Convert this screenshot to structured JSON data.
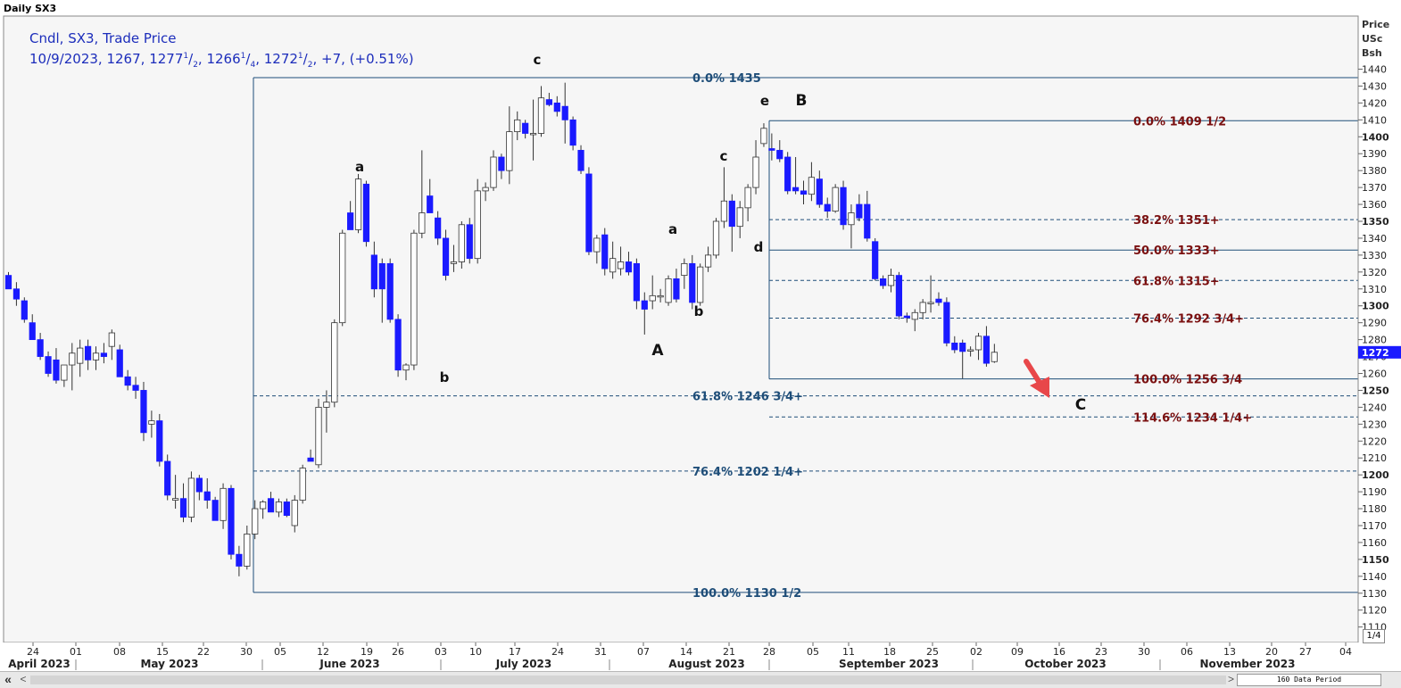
{
  "window": {
    "title": "Daily SX3"
  },
  "legend": {
    "line1": "Cndl, SX3, Trade Price",
    "date": "10/9/2023",
    "open": "1267",
    "high_int": "1277",
    "high_num": "1",
    "high_den": "2",
    "low_int": "1266",
    "low_num": "1",
    "low_den": "4",
    "close_int": "1272",
    "close_num": "1",
    "close_den": "2",
    "change": "+7, (+0.51%)"
  },
  "axis": {
    "unit_lines": [
      "Price",
      "USc",
      "Bsh"
    ],
    "current_price": "1272"
  },
  "bottom": {
    "scroll_left": "«",
    "scroll_left2": "<",
    "scroll_right": ">",
    "data_period": "160 Data Period",
    "page_indicator": "1/4"
  },
  "colors": {
    "down_candle": "#1a1aff",
    "up_candle": "#ffffff",
    "fib_blue": "#1f4e79",
    "fib_red": "#7a0f0f",
    "arrow": "#e8474a"
  },
  "chart_data": {
    "type": "candlestick",
    "title": "Daily SX3",
    "ylabel": "Price USc Bsh",
    "ylim": [
      1110,
      1450
    ],
    "y_ticks": [
      1110,
      1120,
      1130,
      1140,
      1150,
      1160,
      1170,
      1180,
      1190,
      1200,
      1210,
      1220,
      1230,
      1240,
      1250,
      1260,
      1270,
      1280,
      1290,
      1300,
      1310,
      1320,
      1330,
      1340,
      1350,
      1360,
      1370,
      1380,
      1390,
      1400,
      1410,
      1420,
      1430,
      1440
    ],
    "x_tick_labels": [
      "24",
      "01",
      "08",
      "15",
      "22",
      "30",
      "05",
      "12",
      "19",
      "26",
      "03",
      "10",
      "17",
      "24",
      "31",
      "07",
      "14",
      "21",
      "28",
      "05",
      "11",
      "18",
      "25",
      "02",
      "09",
      "16",
      "23",
      "30",
      "06",
      "13",
      "20",
      "27",
      "04"
    ],
    "month_labels": [
      "April 2023",
      "May 2023",
      "June 2023",
      "July 2023",
      "August 2023",
      "September 2023",
      "October 2023",
      "November 2023"
    ],
    "candles": [
      {
        "o": 1318,
        "h": 1320,
        "l": 1310,
        "c": 1310
      },
      {
        "o": 1310,
        "h": 1314,
        "l": 1300,
        "c": 1304
      },
      {
        "o": 1303,
        "h": 1305,
        "l": 1290,
        "c": 1292
      },
      {
        "o": 1290,
        "h": 1295,
        "l": 1280,
        "c": 1280
      },
      {
        "o": 1280,
        "h": 1284,
        "l": 1268,
        "c": 1270
      },
      {
        "o": 1270,
        "h": 1273,
        "l": 1258,
        "c": 1260
      },
      {
        "o": 1268,
        "h": 1275,
        "l": 1254,
        "c": 1256
      },
      {
        "o": 1256,
        "h": 1262,
        "l": 1252,
        "c": 1265
      },
      {
        "o": 1265,
        "h": 1278,
        "l": 1250,
        "c": 1272
      },
      {
        "o": 1266,
        "h": 1280,
        "l": 1258,
        "c": 1275
      },
      {
        "o": 1276,
        "h": 1280,
        "l": 1262,
        "c": 1268
      },
      {
        "o": 1268,
        "h": 1276,
        "l": 1262,
        "c": 1272
      },
      {
        "o": 1272,
        "h": 1278,
        "l": 1266,
        "c": 1270
      },
      {
        "o": 1276,
        "h": 1286,
        "l": 1268,
        "c": 1284
      },
      {
        "o": 1274,
        "h": 1277,
        "l": 1258,
        "c": 1258
      },
      {
        "o": 1258,
        "h": 1262,
        "l": 1250,
        "c": 1253
      },
      {
        "o": 1253,
        "h": 1258,
        "l": 1245,
        "c": 1250
      },
      {
        "o": 1250,
        "h": 1255,
        "l": 1220,
        "c": 1225
      },
      {
        "o": 1230,
        "h": 1238,
        "l": 1222,
        "c": 1232
      },
      {
        "o": 1232,
        "h": 1236,
        "l": 1205,
        "c": 1208
      },
      {
        "o": 1208,
        "h": 1212,
        "l": 1185,
        "c": 1188
      },
      {
        "o": 1185,
        "h": 1200,
        "l": 1180,
        "c": 1186
      },
      {
        "o": 1186,
        "h": 1195,
        "l": 1172,
        "c": 1175
      },
      {
        "o": 1175,
        "h": 1202,
        "l": 1172,
        "c": 1198
      },
      {
        "o": 1198,
        "h": 1200,
        "l": 1185,
        "c": 1190
      },
      {
        "o": 1190,
        "h": 1198,
        "l": 1180,
        "c": 1185
      },
      {
        "o": 1185,
        "h": 1187,
        "l": 1173,
        "c": 1173
      },
      {
        "o": 1173,
        "h": 1195,
        "l": 1168,
        "c": 1192
      },
      {
        "o": 1192,
        "h": 1194,
        "l": 1150,
        "c": 1153
      },
      {
        "o": 1153,
        "h": 1158,
        "l": 1140,
        "c": 1146
      },
      {
        "o": 1146,
        "h": 1170,
        "l": 1144,
        "c": 1165
      },
      {
        "o": 1165,
        "h": 1185,
        "l": 1162,
        "c": 1180
      },
      {
        "o": 1180,
        "h": 1185,
        "l": 1174,
        "c": 1184
      },
      {
        "o": 1186,
        "h": 1190,
        "l": 1178,
        "c": 1178
      },
      {
        "o": 1178,
        "h": 1186,
        "l": 1175,
        "c": 1184
      },
      {
        "o": 1184,
        "h": 1186,
        "l": 1175,
        "c": 1176
      },
      {
        "o": 1170,
        "h": 1188,
        "l": 1166,
        "c": 1185
      },
      {
        "o": 1185,
        "h": 1206,
        "l": 1183,
        "c": 1204
      },
      {
        "o": 1210,
        "h": 1215,
        "l": 1208,
        "c": 1208
      },
      {
        "o": 1206,
        "h": 1245,
        "l": 1204,
        "c": 1240
      },
      {
        "o": 1240,
        "h": 1250,
        "l": 1225,
        "c": 1243
      },
      {
        "o": 1243,
        "h": 1292,
        "l": 1240,
        "c": 1290
      },
      {
        "o": 1290,
        "h": 1345,
        "l": 1288,
        "c": 1343
      },
      {
        "o": 1355,
        "h": 1362,
        "l": 1345,
        "c": 1345
      },
      {
        "o": 1345,
        "h": 1378,
        "l": 1343,
        "c": 1375
      },
      {
        "o": 1372,
        "h": 1374,
        "l": 1335,
        "c": 1338
      },
      {
        "o": 1330,
        "h": 1338,
        "l": 1305,
        "c": 1310
      },
      {
        "o": 1325,
        "h": 1328,
        "l": 1290,
        "c": 1310
      },
      {
        "o": 1325,
        "h": 1328,
        "l": 1290,
        "c": 1292
      },
      {
        "o": 1292,
        "h": 1295,
        "l": 1258,
        "c": 1262
      },
      {
        "o": 1262,
        "h": 1266,
        "l": 1256,
        "c": 1265
      },
      {
        "o": 1265,
        "h": 1345,
        "l": 1262,
        "c": 1343
      },
      {
        "o": 1343,
        "h": 1392,
        "l": 1340,
        "c": 1355
      },
      {
        "o": 1365,
        "h": 1375,
        "l": 1355,
        "c": 1355
      },
      {
        "o": 1352,
        "h": 1356,
        "l": 1336,
        "c": 1340
      },
      {
        "o": 1340,
        "h": 1345,
        "l": 1315,
        "c": 1318
      },
      {
        "o": 1325,
        "h": 1336,
        "l": 1320,
        "c": 1326
      },
      {
        "o": 1326,
        "h": 1350,
        "l": 1322,
        "c": 1348
      },
      {
        "o": 1348,
        "h": 1352,
        "l": 1325,
        "c": 1328
      },
      {
        "o": 1328,
        "h": 1375,
        "l": 1325,
        "c": 1368
      },
      {
        "o": 1368,
        "h": 1373,
        "l": 1362,
        "c": 1370
      },
      {
        "o": 1370,
        "h": 1392,
        "l": 1368,
        "c": 1388
      },
      {
        "o": 1388,
        "h": 1390,
        "l": 1375,
        "c": 1380
      },
      {
        "o": 1380,
        "h": 1418,
        "l": 1372,
        "c": 1403
      },
      {
        "o": 1403,
        "h": 1415,
        "l": 1398,
        "c": 1410
      },
      {
        "o": 1408,
        "h": 1410,
        "l": 1399,
        "c": 1402
      },
      {
        "o": 1402,
        "h": 1422,
        "l": 1386,
        "c": 1402
      },
      {
        "o": 1402,
        "h": 1430,
        "l": 1400,
        "c": 1423
      },
      {
        "o": 1422,
        "h": 1426,
        "l": 1418,
        "c": 1419
      },
      {
        "o": 1420,
        "h": 1424,
        "l": 1412,
        "c": 1415
      },
      {
        "o": 1418,
        "h": 1432,
        "l": 1396,
        "c": 1410
      },
      {
        "o": 1410,
        "h": 1412,
        "l": 1392,
        "c": 1395
      },
      {
        "o": 1392,
        "h": 1395,
        "l": 1378,
        "c": 1380
      },
      {
        "o": 1378,
        "h": 1382,
        "l": 1330,
        "c": 1332
      },
      {
        "o": 1332,
        "h": 1342,
        "l": 1325,
        "c": 1340
      },
      {
        "o": 1342,
        "h": 1346,
        "l": 1318,
        "c": 1322
      },
      {
        "o": 1320,
        "h": 1338,
        "l": 1316,
        "c": 1328
      },
      {
        "o": 1322,
        "h": 1335,
        "l": 1318,
        "c": 1326
      },
      {
        "o": 1326,
        "h": 1332,
        "l": 1318,
        "c": 1320
      },
      {
        "o": 1325,
        "h": 1328,
        "l": 1298,
        "c": 1303
      },
      {
        "o": 1303,
        "h": 1308,
        "l": 1283,
        "c": 1298
      },
      {
        "o": 1303,
        "h": 1318,
        "l": 1298,
        "c": 1306
      },
      {
        "o": 1306,
        "h": 1310,
        "l": 1302,
        "c": 1306
      },
      {
        "o": 1302,
        "h": 1318,
        "l": 1300,
        "c": 1316
      },
      {
        "o": 1316,
        "h": 1322,
        "l": 1302,
        "c": 1304
      },
      {
        "o": 1318,
        "h": 1328,
        "l": 1310,
        "c": 1325
      },
      {
        "o": 1325,
        "h": 1330,
        "l": 1298,
        "c": 1302
      },
      {
        "o": 1302,
        "h": 1325,
        "l": 1300,
        "c": 1323
      },
      {
        "o": 1323,
        "h": 1335,
        "l": 1320,
        "c": 1330
      },
      {
        "o": 1330,
        "h": 1352,
        "l": 1328,
        "c": 1350
      },
      {
        "o": 1350,
        "h": 1382,
        "l": 1346,
        "c": 1362
      },
      {
        "o": 1362,
        "h": 1366,
        "l": 1332,
        "c": 1347
      },
      {
        "o": 1347,
        "h": 1362,
        "l": 1340,
        "c": 1358
      },
      {
        "o": 1358,
        "h": 1372,
        "l": 1350,
        "c": 1370
      },
      {
        "o": 1370,
        "h": 1398,
        "l": 1366,
        "c": 1388
      },
      {
        "o": 1396,
        "h": 1408,
        "l": 1394,
        "c": 1405
      },
      {
        "o": 1393,
        "h": 1402,
        "l": 1386,
        "c": 1392
      },
      {
        "o": 1392,
        "h": 1398,
        "l": 1385,
        "c": 1387
      },
      {
        "o": 1388,
        "h": 1391,
        "l": 1366,
        "c": 1368
      },
      {
        "o": 1370,
        "h": 1388,
        "l": 1366,
        "c": 1368
      },
      {
        "o": 1368,
        "h": 1374,
        "l": 1360,
        "c": 1366
      },
      {
        "o": 1366,
        "h": 1385,
        "l": 1362,
        "c": 1376
      },
      {
        "o": 1375,
        "h": 1380,
        "l": 1358,
        "c": 1360
      },
      {
        "o": 1360,
        "h": 1364,
        "l": 1352,
        "c": 1356
      },
      {
        "o": 1356,
        "h": 1372,
        "l": 1355,
        "c": 1370
      },
      {
        "o": 1370,
        "h": 1374,
        "l": 1345,
        "c": 1348
      },
      {
        "o": 1348,
        "h": 1360,
        "l": 1334,
        "c": 1355
      },
      {
        "o": 1360,
        "h": 1366,
        "l": 1350,
        "c": 1352
      },
      {
        "o": 1360,
        "h": 1368,
        "l": 1338,
        "c": 1340
      },
      {
        "o": 1338,
        "h": 1340,
        "l": 1315,
        "c": 1316
      },
      {
        "o": 1316,
        "h": 1318,
        "l": 1310,
        "c": 1312
      },
      {
        "o": 1312,
        "h": 1322,
        "l": 1308,
        "c": 1318
      },
      {
        "o": 1318,
        "h": 1320,
        "l": 1292,
        "c": 1294
      },
      {
        "o": 1294,
        "h": 1296,
        "l": 1290,
        "c": 1293
      },
      {
        "o": 1292,
        "h": 1298,
        "l": 1285,
        "c": 1296
      },
      {
        "o": 1296,
        "h": 1304,
        "l": 1292,
        "c": 1302
      },
      {
        "o": 1302,
        "h": 1318,
        "l": 1296,
        "c": 1302
      },
      {
        "o": 1304,
        "h": 1308,
        "l": 1300,
        "c": 1302
      },
      {
        "o": 1302,
        "h": 1305,
        "l": 1276,
        "c": 1278
      },
      {
        "o": 1278,
        "h": 1282,
        "l": 1272,
        "c": 1274
      },
      {
        "o": 1278,
        "h": 1280,
        "l": 1257,
        "c": 1273
      },
      {
        "o": 1274,
        "h": 1276,
        "l": 1270,
        "c": 1274
      },
      {
        "o": 1274,
        "h": 1284,
        "l": 1268,
        "c": 1282
      },
      {
        "o": 1282,
        "h": 1288,
        "l": 1264,
        "c": 1266
      },
      {
        "o": 1267,
        "h": 1277.5,
        "l": 1266.25,
        "c": 1272.5
      }
    ],
    "fib_left": [
      {
        "pct": "0.0%",
        "value": "1435",
        "price": 1435,
        "style": "solid"
      },
      {
        "pct": "61.8%",
        "value": "1246 3/4+",
        "price": 1246.75,
        "style": "dashed"
      },
      {
        "pct": "76.4%",
        "value": "1202 1/4+",
        "price": 1202.25,
        "style": "dashed"
      },
      {
        "pct": "100.0%",
        "value": "1130 1/2",
        "price": 1130.5,
        "style": "solid"
      }
    ],
    "fib_right": [
      {
        "pct": "0.0%",
        "value": "1409 1/2",
        "price": 1409.5,
        "style": "solid"
      },
      {
        "pct": "38.2%",
        "value": "1351+",
        "price": 1351,
        "style": "dashed"
      },
      {
        "pct": "50.0%",
        "value": "1333+",
        "price": 1333,
        "style": "solid"
      },
      {
        "pct": "61.8%",
        "value": "1315+",
        "price": 1315,
        "style": "dashed"
      },
      {
        "pct": "76.4%",
        "value": "1292 3/4+",
        "price": 1292.75,
        "style": "dashed"
      },
      {
        "pct": "100.0%",
        "value": "1256 3/4",
        "price": 1256.75,
        "style": "solid"
      },
      {
        "pct": "114.6%",
        "value": "1234 1/4+",
        "price": 1234.25,
        "style": "dashed"
      }
    ],
    "wave_labels": [
      "a",
      "b",
      "c",
      "a",
      "b",
      "A",
      "c",
      "d",
      "e",
      "B",
      "C"
    ]
  }
}
